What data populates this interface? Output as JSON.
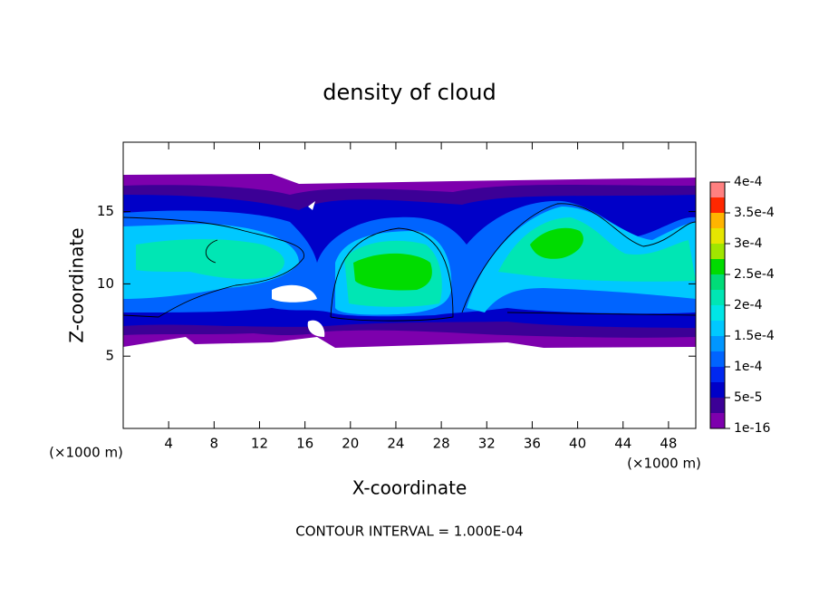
{
  "chart_data": {
    "type": "contour",
    "title": "density of cloud",
    "x_label": "X-coordinate",
    "y_label": "Z-coordinate",
    "x_unit": "(×1000 m)",
    "y_unit": "(×1000 m)",
    "annotation": "CONTOUR INTERVAL = 1.000E-04",
    "xlim": [
      0,
      50.4
    ],
    "ylim": [
      0,
      19.8
    ],
    "xticks": [
      4,
      8,
      12,
      16,
      20,
      24,
      28,
      32,
      36,
      40,
      44,
      48
    ],
    "yticks": [
      5,
      10,
      15
    ],
    "colorbar": {
      "ticks": [
        {
          "value": 1e-16,
          "label": "1e-16"
        },
        {
          "value": 5e-05,
          "label": "5e-5"
        },
        {
          "value": 0.0001,
          "label": "1e-4"
        },
        {
          "value": 0.00015,
          "label": "1.5e-4"
        },
        {
          "value": 0.0002,
          "label": "2e-4"
        },
        {
          "value": 0.00025,
          "label": "2.5e-4"
        },
        {
          "value": 0.0003,
          "label": "3e-4"
        },
        {
          "value": 0.00035,
          "label": "3.5e-4"
        },
        {
          "value": 0.0004,
          "label": "4e-4"
        }
      ],
      "colors": [
        "#7d00ad",
        "#3c0096",
        "#0000c8",
        "#0028f0",
        "#0064ff",
        "#0096ff",
        "#00c8ff",
        "#00e6e6",
        "#00e6b4",
        "#00dc78",
        "#00dc00",
        "#a0e600",
        "#e6e600",
        "#ffb400",
        "#ff2800",
        "#ff8080"
      ]
    }
  }
}
